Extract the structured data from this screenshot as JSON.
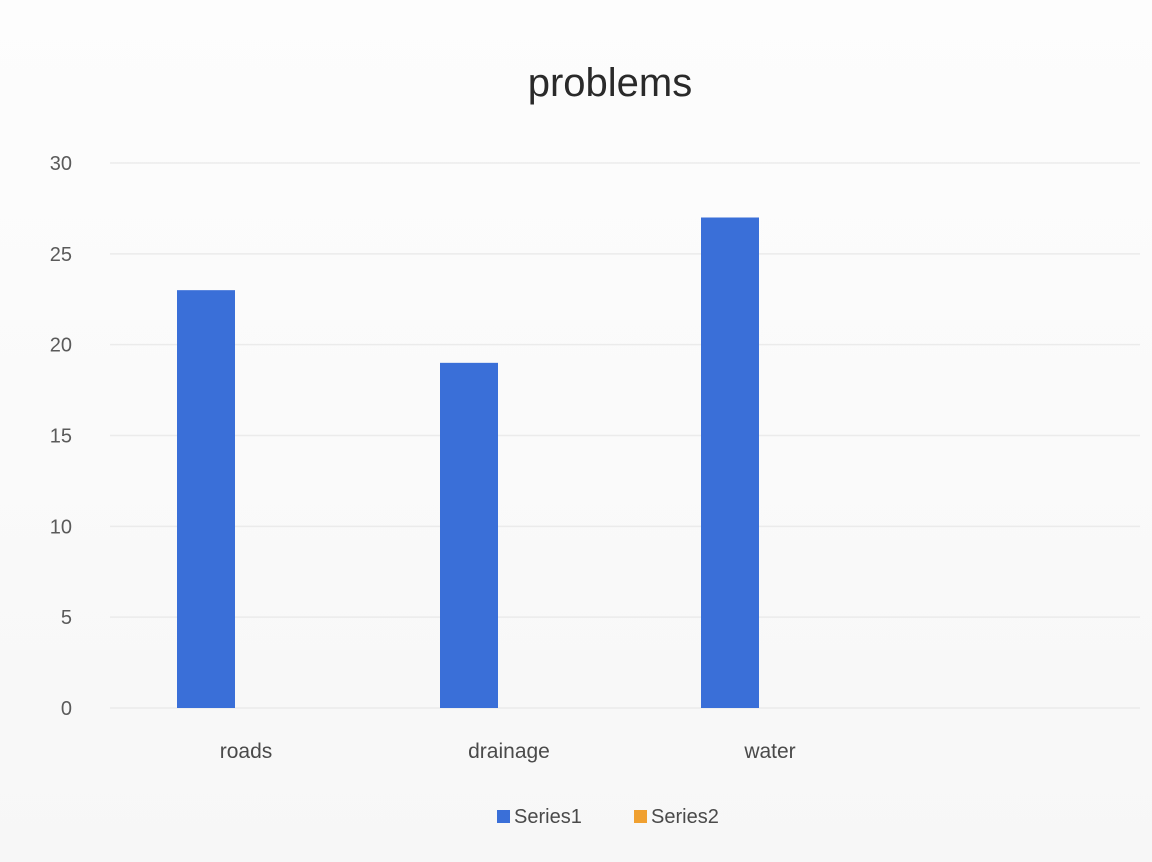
{
  "chart_data": {
    "type": "bar",
    "title": "problems",
    "categories": [
      "roads",
      "drainage",
      "water"
    ],
    "series": [
      {
        "name": "Series1",
        "values": [
          23,
          19,
          27
        ],
        "color": "#3a6fd8"
      },
      {
        "name": "Series2",
        "values": [
          0,
          0,
          0
        ],
        "color": "#f0a030"
      }
    ],
    "ylim": [
      0,
      30
    ],
    "yticks": [
      "0",
      "5",
      "10",
      "15",
      "20",
      "25",
      "30"
    ],
    "grid": true,
    "legend_position": "bottom"
  }
}
